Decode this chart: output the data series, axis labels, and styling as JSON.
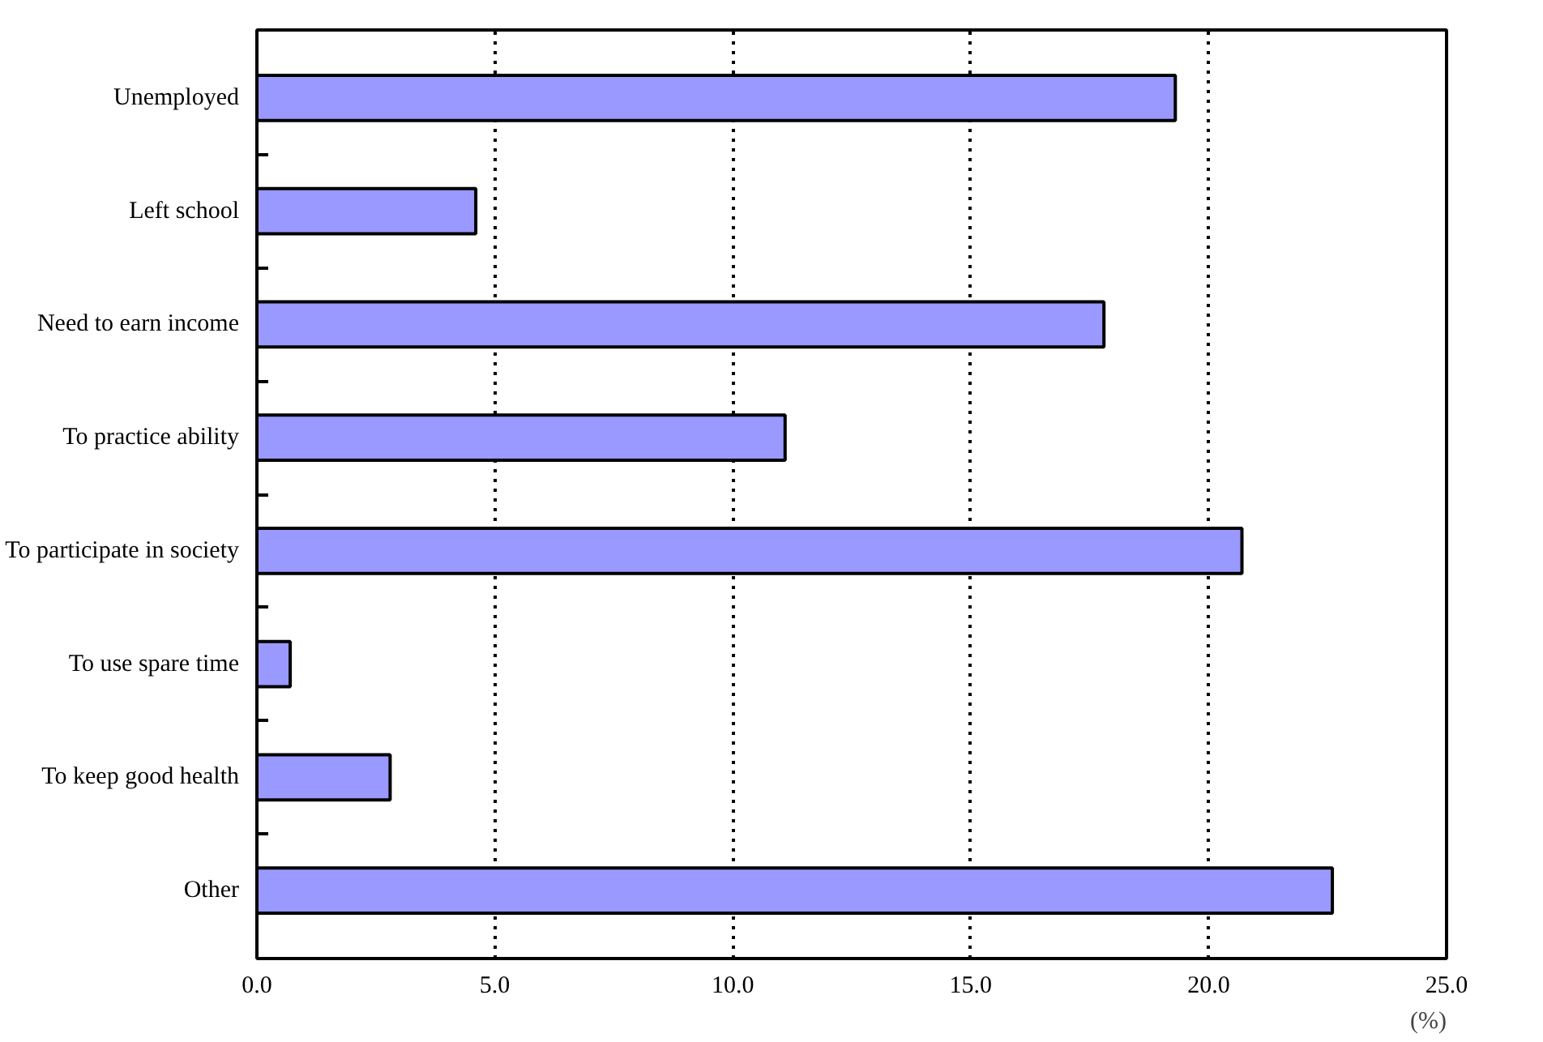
{
  "chart_data": {
    "type": "bar",
    "orientation": "horizontal",
    "xlabel": "(%)",
    "categories": [
      "Unemployed",
      "Left school",
      "Need to earn income",
      "To practice ability",
      "To participate in society",
      "To use spare time",
      "To keep good health",
      "Other"
    ],
    "values": [
      19.3,
      4.6,
      17.8,
      11.1,
      20.7,
      0.7,
      2.8,
      22.6
    ],
    "color": "#9999ff",
    "xlim": [
      0,
      25
    ],
    "xticks": [
      {
        "value": 0,
        "label": "0.0"
      },
      {
        "value": 5,
        "label": "5.0"
      },
      {
        "value": 10,
        "label": "10.0"
      },
      {
        "value": 15,
        "label": "15.0"
      },
      {
        "value": 20,
        "label": "20.0"
      },
      {
        "value": 25,
        "label": "25.0"
      }
    ],
    "grid": "x"
  }
}
